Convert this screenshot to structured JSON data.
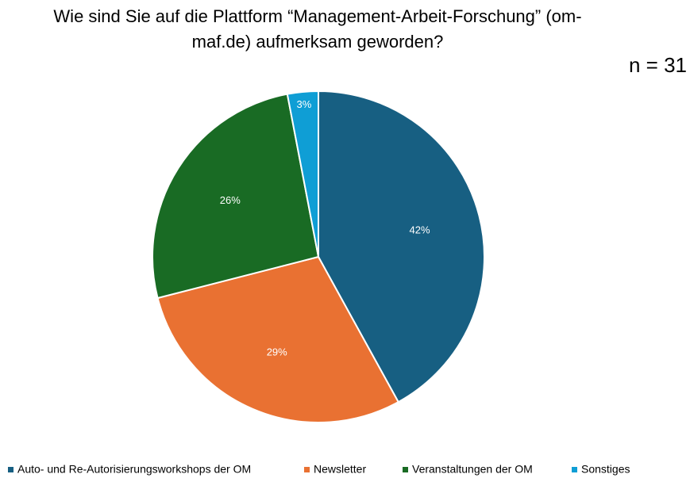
{
  "chart_data": {
    "type": "pie",
    "title": [
      "Wie sind Sie auf die Plattform “Management-Arbeit-Forschung” (om-",
      "maf.de) aufmerksam geworden?"
    ],
    "annotation": "n = 31",
    "categories": [
      "Auto- und Re-Autorisierungsworkshops der OM",
      "Newsletter",
      "Veranstaltungen der OM",
      "Sonstiges"
    ],
    "values": [
      42,
      29,
      26,
      3
    ],
    "value_labels": [
      "42%",
      "29%",
      "26%",
      "3%"
    ],
    "colors": [
      "#175f82",
      "#e97132",
      "#196b24",
      "#0f9ed5"
    ],
    "legend": "bottom"
  }
}
